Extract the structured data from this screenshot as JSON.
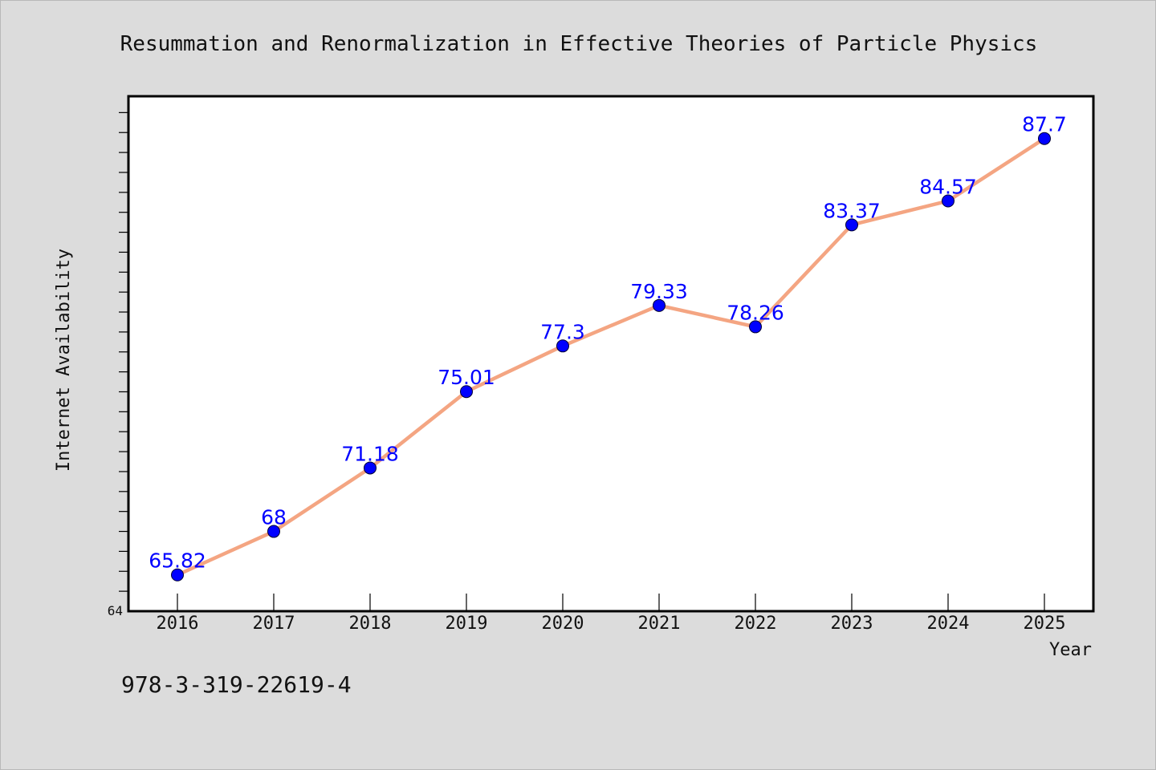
{
  "chart_data": {
    "type": "line",
    "title": "Resummation and Renormalization in Effective Theories of Particle Physics",
    "xlabel": "Year",
    "ylabel": "Internet Availability",
    "categories": [
      "2016",
      "2017",
      "2018",
      "2019",
      "2020",
      "2021",
      "2022",
      "2023",
      "2024",
      "2025"
    ],
    "series": [
      {
        "values": [
          65.82,
          68,
          71.18,
          75.01,
          77.3,
          79.33,
          78.26,
          83.37,
          84.57,
          87.7
        ],
        "labels": [
          "65.82",
          "68",
          "71.18",
          "75.01",
          "77.3",
          "79.33",
          "78.26",
          "83.37",
          "84.57",
          "87.7"
        ]
      }
    ],
    "ylim": [
      64,
      90
    ],
    "ytick_labels": [
      "64"
    ],
    "grid": false,
    "line_color": "#f4a582",
    "marker_color": "#0000ff",
    "label_color": "#0000ff"
  },
  "footnote": "978-3-319-22619-4"
}
